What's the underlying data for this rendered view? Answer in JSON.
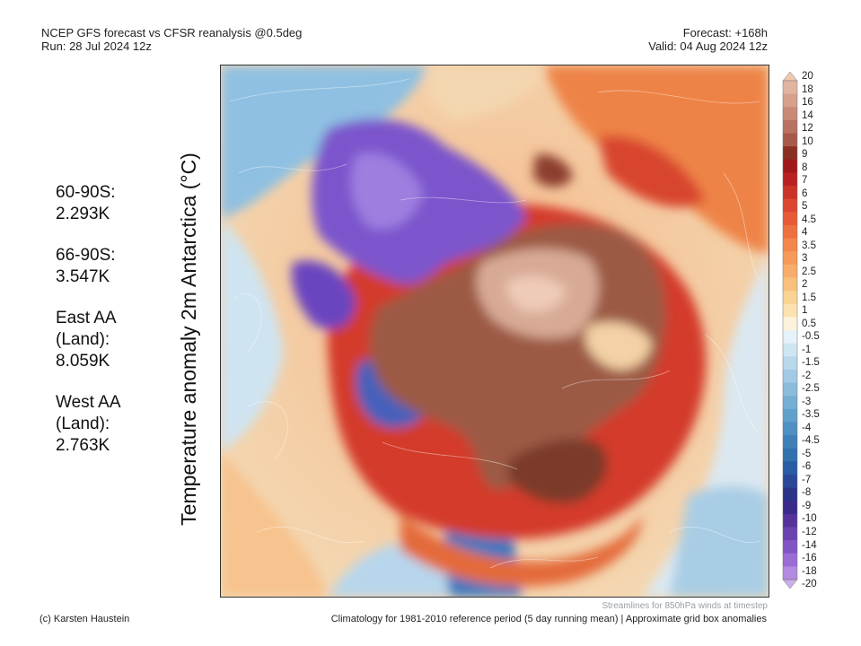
{
  "header": {
    "title_line1": "NCEP GFS forecast vs CFSR reanalysis @0.5deg",
    "title_line2": "Run: 28 Jul 2024 12z",
    "forecast": "Forecast: +168h",
    "valid": "Valid: 04 Aug 2024 12z"
  },
  "stats": [
    {
      "line1": "60-90S:",
      "line2": "2.293K",
      "line3": ""
    },
    {
      "line1": "66-90S:",
      "line2": "3.547K",
      "line3": ""
    },
    {
      "line1": "East AA",
      "line2": "(Land):",
      "line3": "8.059K"
    },
    {
      "line1": "West AA",
      "line2": "(Land):",
      "line3": "2.763K"
    }
  ],
  "y_label": "Temperature anomaly 2m Antarctica (°C)",
  "colorbar": {
    "ticks": [
      "20",
      "18",
      "16",
      "14",
      "12",
      "10",
      "9",
      "8",
      "7",
      "6",
      "5",
      "4.5",
      "4",
      "3.5",
      "3",
      "2.5",
      "2",
      "1.5",
      "1",
      "0.5",
      "-0.5",
      "-1",
      "-1.5",
      "-2",
      "-2.5",
      "-3",
      "-3.5",
      "-4",
      "-4.5",
      "-5",
      "-6",
      "-7",
      "-8",
      "-9",
      "-10",
      "-12",
      "-14",
      "-16",
      "-18",
      "-20"
    ],
    "colors": [
      "#f0c8b0",
      "#e2b4a0",
      "#d6a08c",
      "#c88a76",
      "#b97262",
      "#a85a4a",
      "#8a3020",
      "#a01818",
      "#bb2020",
      "#cc3328",
      "#dd4630",
      "#e65a35",
      "#ee7040",
      "#f2864c",
      "#f59a5a",
      "#f7ae6a",
      "#f8c07c",
      "#fad294",
      "#fbe2b0",
      "#fdf3dc",
      "#e6f1f8",
      "#cfe5f2",
      "#b8d8ec",
      "#a2cae4",
      "#8cbcdc",
      "#76aed4",
      "#62a0cc",
      "#4f90c2",
      "#3f80b8",
      "#3270ae",
      "#2a5ca4",
      "#2a4898",
      "#2c3488",
      "#3a2a8a",
      "#55339a",
      "#6a42b0",
      "#8255c4",
      "#9a6cd4",
      "#b28ae0",
      "#ccaeea"
    ]
  },
  "footer": {
    "streamlines": "Streamlines for 850hPa winds at timestep",
    "credit": "(c) Karsten Haustein",
    "climatology": "Climatology for 1981-2010 reference period (5 day running mean) | Approximate grid box anomalies"
  }
}
